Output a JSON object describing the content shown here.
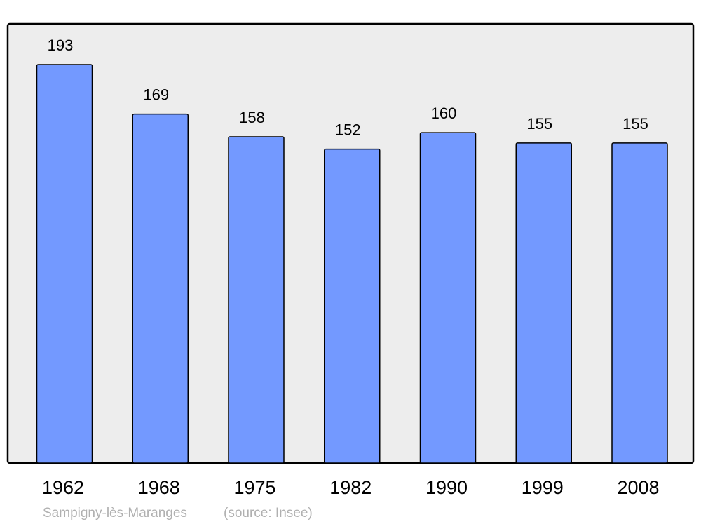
{
  "chart_data": {
    "type": "bar",
    "categories": [
      "1962",
      "1968",
      "1975",
      "1982",
      "1990",
      "1999",
      "2008"
    ],
    "values": [
      193,
      169,
      158,
      152,
      160,
      155,
      155
    ],
    "title": "",
    "xlabel": "",
    "ylabel": "",
    "ylim": [
      0,
      212.7
    ],
    "grid": false,
    "data_labels": true,
    "colors": {
      "bar": "#7399ff",
      "background": "#ededed",
      "stroke": "#000000"
    }
  },
  "footer": {
    "place": "Sampigny-lès-Maranges",
    "source": "(source: Insee)"
  }
}
